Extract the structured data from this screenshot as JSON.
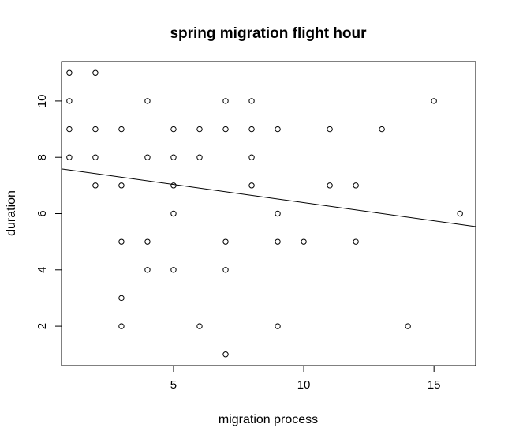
{
  "chart_data": {
    "type": "scatter",
    "title": "spring migration flight hour",
    "xlabel": "migration process",
    "ylabel": "duration",
    "xlim": [
      0.7,
      16.6
    ],
    "ylim": [
      0.6,
      11.4
    ],
    "x_ticks": [
      5,
      10,
      15
    ],
    "y_ticks": [
      2,
      4,
      6,
      8,
      10
    ],
    "grid": false,
    "legend": "none",
    "marker": "open-circle",
    "points": [
      {
        "x": 1,
        "y": 11
      },
      {
        "x": 1,
        "y": 10
      },
      {
        "x": 1,
        "y": 9
      },
      {
        "x": 1,
        "y": 8
      },
      {
        "x": 2,
        "y": 11
      },
      {
        "x": 2,
        "y": 9
      },
      {
        "x": 2,
        "y": 8
      },
      {
        "x": 2,
        "y": 7
      },
      {
        "x": 3,
        "y": 9
      },
      {
        "x": 3,
        "y": 7
      },
      {
        "x": 3,
        "y": 5
      },
      {
        "x": 3,
        "y": 3
      },
      {
        "x": 3,
        "y": 2
      },
      {
        "x": 4,
        "y": 10
      },
      {
        "x": 4,
        "y": 8
      },
      {
        "x": 4,
        "y": 5
      },
      {
        "x": 4,
        "y": 4
      },
      {
        "x": 5,
        "y": 9
      },
      {
        "x": 5,
        "y": 8
      },
      {
        "x": 5,
        "y": 7
      },
      {
        "x": 5,
        "y": 6
      },
      {
        "x": 5,
        "y": 4
      },
      {
        "x": 6,
        "y": 9
      },
      {
        "x": 6,
        "y": 8
      },
      {
        "x": 6,
        "y": 2
      },
      {
        "x": 7,
        "y": 10
      },
      {
        "x": 7,
        "y": 9
      },
      {
        "x": 7,
        "y": 5
      },
      {
        "x": 7,
        "y": 4
      },
      {
        "x": 7,
        "y": 1
      },
      {
        "x": 8,
        "y": 10
      },
      {
        "x": 8,
        "y": 9
      },
      {
        "x": 8,
        "y": 8
      },
      {
        "x": 8,
        "y": 7
      },
      {
        "x": 9,
        "y": 9
      },
      {
        "x": 9,
        "y": 6
      },
      {
        "x": 9,
        "y": 5
      },
      {
        "x": 9,
        "y": 2
      },
      {
        "x": 10,
        "y": 5
      },
      {
        "x": 11,
        "y": 9
      },
      {
        "x": 11,
        "y": 7
      },
      {
        "x": 12,
        "y": 7
      },
      {
        "x": 12,
        "y": 5
      },
      {
        "x": 13,
        "y": 9
      },
      {
        "x": 14,
        "y": 2
      },
      {
        "x": 15,
        "y": 10
      },
      {
        "x": 16,
        "y": 6
      }
    ],
    "regression_line": {
      "intercept": 7.68,
      "slope": -0.129
    }
  }
}
